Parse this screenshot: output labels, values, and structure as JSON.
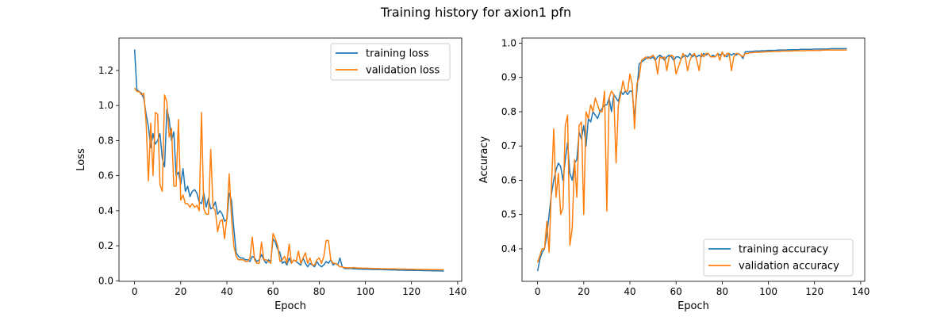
{
  "figure": {
    "title": "Training history for axion1 pfn"
  },
  "chart_data": [
    {
      "type": "line",
      "title": "",
      "xlabel": "Epoch",
      "ylabel": "Loss",
      "xlim": [
        -6.75,
        141.75
      ],
      "ylim": [
        -0.003,
        1.385
      ],
      "xticks": [
        0,
        20,
        40,
        60,
        80,
        100,
        120,
        140
      ],
      "yticks": [
        0.0,
        0.2,
        0.4,
        0.6,
        0.8,
        1.0,
        1.2
      ],
      "ytick_labels": [
        "0.0",
        "0.2",
        "0.4",
        "0.6",
        "0.8",
        "1.0",
        "1.2"
      ],
      "legend_position": "top-right",
      "grid": false,
      "series": [
        {
          "name": "training loss",
          "color": "#1f77b4",
          "values": [
            1.32,
            1.09,
            1.08,
            1.07,
            1.04,
            0.95,
            0.88,
            0.76,
            0.84,
            0.78,
            0.8,
            0.84,
            0.7,
            0.65,
            0.98,
            0.92,
            0.8,
            0.85,
            0.6,
            0.62,
            0.55,
            0.64,
            0.51,
            0.54,
            0.48,
            0.51,
            0.52,
            0.5,
            0.45,
            0.44,
            0.5,
            0.42,
            0.47,
            0.41,
            0.42,
            0.45,
            0.38,
            0.4,
            0.38,
            0.34,
            0.35,
            0.5,
            0.46,
            0.3,
            0.16,
            0.14,
            0.13,
            0.13,
            0.12,
            0.12,
            0.11,
            0.14,
            0.13,
            0.11,
            0.12,
            0.15,
            0.12,
            0.1,
            0.12,
            0.11,
            0.24,
            0.22,
            0.18,
            0.16,
            0.1,
            0.11,
            0.09,
            0.13,
            0.1,
            0.12,
            0.11,
            0.1,
            0.09,
            0.13,
            0.1,
            0.08,
            0.1,
            0.09,
            0.08,
            0.11,
            0.09,
            0.08,
            0.09,
            0.11,
            0.1,
            0.12,
            0.09,
            0.1,
            0.09,
            0.13,
            0.08,
            0.07,
            0.07,
            0.07,
            0.07,
            0.068,
            0.068,
            0.067,
            0.067,
            0.066,
            0.066,
            0.066,
            0.065,
            0.065,
            0.065,
            0.064,
            0.064,
            0.064,
            0.063,
            0.063,
            0.063,
            0.062,
            0.062,
            0.062,
            0.061,
            0.061,
            0.061,
            0.06,
            0.06,
            0.06,
            0.06,
            0.059,
            0.059,
            0.059,
            0.059,
            0.058,
            0.058,
            0.058,
            0.058,
            0.057,
            0.057,
            0.057,
            0.057,
            0.056,
            0.056
          ]
        },
        {
          "name": "validation loss",
          "color": "#ff7f0e",
          "values": [
            1.1,
            1.08,
            1.08,
            1.06,
            1.07,
            0.9,
            0.57,
            0.9,
            0.6,
            0.96,
            0.95,
            0.55,
            0.51,
            1.06,
            1.02,
            0.82,
            0.87,
            0.54,
            0.54,
            0.92,
            0.46,
            0.49,
            0.44,
            0.44,
            0.42,
            0.44,
            0.42,
            0.43,
            0.4,
            0.96,
            0.41,
            0.38,
            0.38,
            0.75,
            0.42,
            0.4,
            0.28,
            0.34,
            0.35,
            0.24,
            0.36,
            0.61,
            0.36,
            0.2,
            0.14,
            0.12,
            0.12,
            0.12,
            0.11,
            0.11,
            0.13,
            0.25,
            0.12,
            0.1,
            0.1,
            0.22,
            0.12,
            0.12,
            0.11,
            0.1,
            0.27,
            0.24,
            0.2,
            0.11,
            0.12,
            0.14,
            0.1,
            0.21,
            0.1,
            0.12,
            0.11,
            0.17,
            0.1,
            0.13,
            0.16,
            0.1,
            0.13,
            0.09,
            0.09,
            0.12,
            0.13,
            0.1,
            0.14,
            0.23,
            0.23,
            0.12,
            0.1,
            0.1,
            0.09,
            0.08,
            0.08,
            0.075,
            0.075,
            0.074,
            0.074,
            0.076,
            0.074,
            0.073,
            0.073,
            0.072,
            0.072,
            0.072,
            0.071,
            0.071,
            0.07,
            0.07,
            0.07,
            0.069,
            0.069,
            0.069,
            0.068,
            0.068,
            0.068,
            0.068,
            0.067,
            0.067,
            0.067,
            0.067,
            0.066,
            0.066,
            0.066,
            0.066,
            0.065,
            0.065,
            0.065,
            0.065,
            0.065,
            0.064,
            0.064,
            0.064,
            0.064,
            0.064,
            0.063,
            0.063,
            0.063
          ]
        }
      ]
    },
    {
      "type": "line",
      "title": "",
      "xlabel": "Epoch",
      "ylabel": "Accuracy",
      "xlim": [
        -6.75,
        141.75
      ],
      "ylim": [
        0.305,
        1.015
      ],
      "xticks": [
        0,
        20,
        40,
        60,
        80,
        100,
        120,
        140
      ],
      "yticks": [
        0.4,
        0.5,
        0.6,
        0.7,
        0.8,
        0.9,
        1.0
      ],
      "ytick_labels": [
        "0.4",
        "0.5",
        "0.6",
        "0.7",
        "0.8",
        "0.9",
        "1.0"
      ],
      "legend_position": "bottom-right",
      "grid": false,
      "series": [
        {
          "name": "training accuracy",
          "color": "#1f77b4",
          "values": [
            0.335,
            0.37,
            0.39,
            0.4,
            0.44,
            0.5,
            0.56,
            0.6,
            0.63,
            0.65,
            0.64,
            0.6,
            0.66,
            0.71,
            0.62,
            0.6,
            0.65,
            0.66,
            0.74,
            0.72,
            0.76,
            0.7,
            0.78,
            0.77,
            0.8,
            0.79,
            0.78,
            0.8,
            0.81,
            0.82,
            0.82,
            0.84,
            0.8,
            0.85,
            0.84,
            0.83,
            0.86,
            0.85,
            0.86,
            0.85,
            0.86,
            0.86,
            0.78,
            0.86,
            0.94,
            0.945,
            0.95,
            0.955,
            0.96,
            0.955,
            0.96,
            0.95,
            0.96,
            0.965,
            0.96,
            0.95,
            0.96,
            0.965,
            0.96,
            0.95,
            0.96,
            0.96,
            0.955,
            0.96,
            0.965,
            0.96,
            0.97,
            0.96,
            0.965,
            0.96,
            0.965,
            0.96,
            0.97,
            0.965,
            0.97,
            0.96,
            0.965,
            0.96,
            0.97,
            0.965,
            0.97,
            0.965,
            0.96,
            0.97,
            0.965,
            0.97,
            0.965,
            0.97,
            0.965,
            0.955,
            0.975,
            0.975,
            0.976,
            0.976,
            0.977,
            0.977,
            0.977,
            0.978,
            0.978,
            0.978,
            0.979,
            0.979,
            0.979,
            0.979,
            0.98,
            0.98,
            0.98,
            0.98,
            0.98,
            0.981,
            0.981,
            0.981,
            0.981,
            0.981,
            0.982,
            0.982,
            0.982,
            0.982,
            0.982,
            0.982,
            0.983,
            0.983,
            0.983,
            0.983,
            0.983,
            0.983,
            0.983,
            0.984,
            0.984,
            0.984,
            0.984,
            0.984,
            0.984,
            0.984,
            0.984
          ]
        },
        {
          "name": "validation accuracy",
          "color": "#ff7f0e",
          "values": [
            0.36,
            0.38,
            0.4,
            0.4,
            0.48,
            0.39,
            0.58,
            0.75,
            0.55,
            0.62,
            0.5,
            0.52,
            0.76,
            0.79,
            0.41,
            0.46,
            0.66,
            0.55,
            0.76,
            0.77,
            0.5,
            0.8,
            0.78,
            0.82,
            0.8,
            0.84,
            0.82,
            0.8,
            0.8,
            0.86,
            0.51,
            0.84,
            0.86,
            0.85,
            0.65,
            0.82,
            0.85,
            0.89,
            0.86,
            0.86,
            0.91,
            0.88,
            0.75,
            0.88,
            0.9,
            0.95,
            0.955,
            0.96,
            0.955,
            0.96,
            0.965,
            0.955,
            0.91,
            0.96,
            0.955,
            0.96,
            0.92,
            0.96,
            0.965,
            0.96,
            0.91,
            0.93,
            0.95,
            0.97,
            0.96,
            0.92,
            0.95,
            0.965,
            0.97,
            0.95,
            0.92,
            0.97,
            0.96,
            0.97,
            0.97,
            0.96,
            0.96,
            0.96,
            0.97,
            0.95,
            0.975,
            0.96,
            0.97,
            0.97,
            0.92,
            0.96,
            0.97,
            0.97,
            0.965,
            0.96,
            0.97,
            0.97,
            0.972,
            0.972,
            0.973,
            0.973,
            0.974,
            0.974,
            0.974,
            0.975,
            0.975,
            0.975,
            0.976,
            0.976,
            0.976,
            0.976,
            0.977,
            0.977,
            0.977,
            0.977,
            0.977,
            0.978,
            0.978,
            0.978,
            0.978,
            0.978,
            0.978,
            0.979,
            0.979,
            0.979,
            0.979,
            0.979,
            0.979,
            0.979,
            0.98,
            0.98,
            0.98,
            0.98,
            0.98,
            0.98,
            0.98,
            0.98,
            0.98,
            0.98,
            0.98
          ]
        }
      ]
    }
  ]
}
